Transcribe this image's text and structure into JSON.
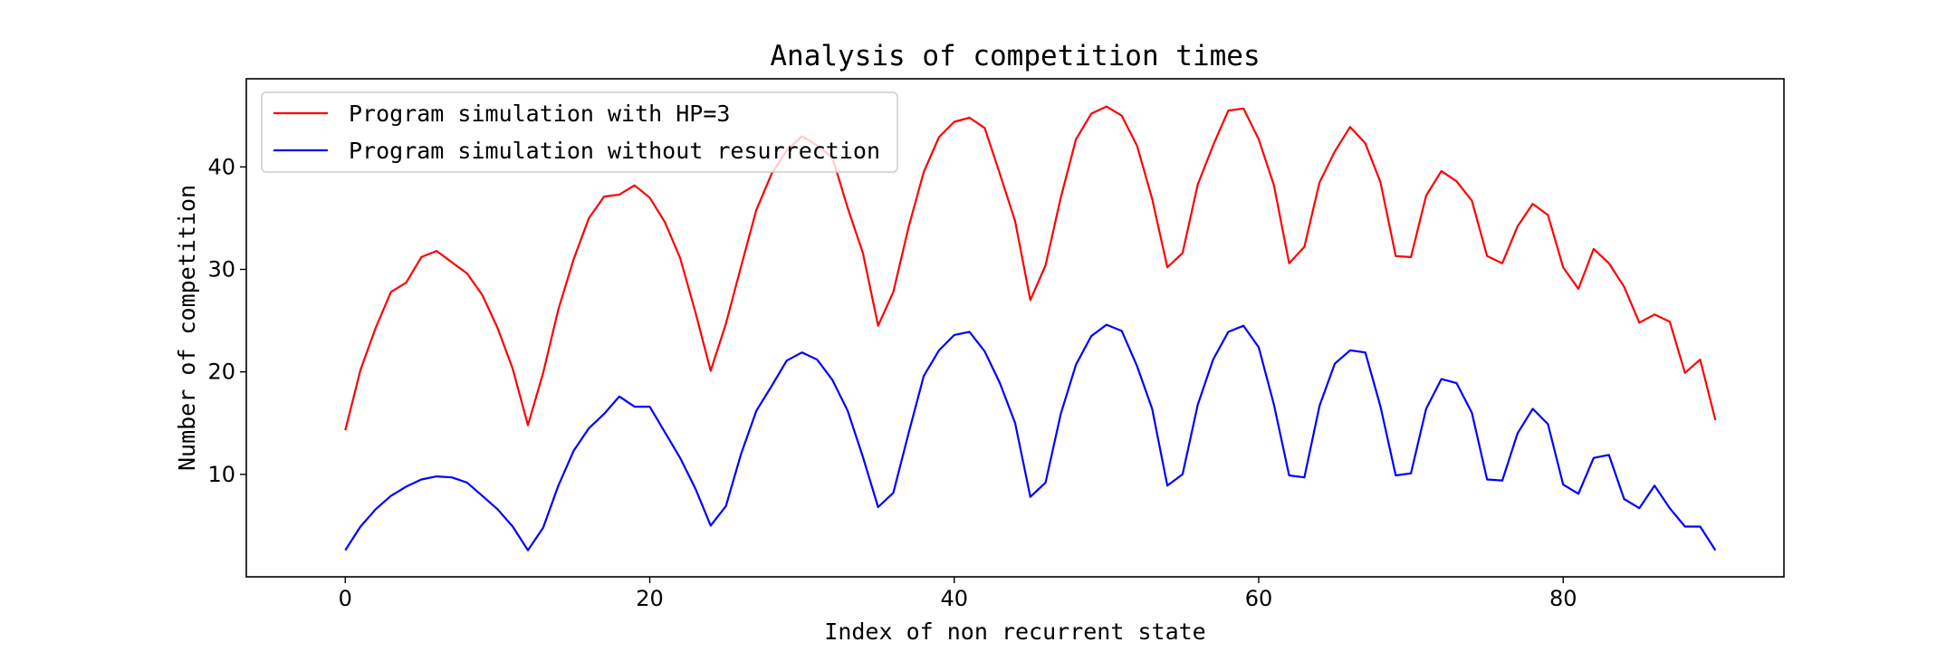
{
  "chart_data": {
    "type": "line",
    "title": "Analysis of competition times",
    "xlabel": "Index of non recurrent state",
    "ylabel": "Number of competition",
    "xlim": [
      -6.5,
      94.5
    ],
    "ylim": [
      0,
      48.6
    ],
    "xticks": [
      0,
      20,
      40,
      60,
      80
    ],
    "yticks": [
      10,
      20,
      30,
      40
    ],
    "grid": false,
    "legend_position": "top-left",
    "series": [
      {
        "name": "Program simulation with HP=3",
        "color": "#ff0000",
        "x": [
          0,
          1,
          2,
          3,
          4,
          5,
          6,
          7,
          8,
          9,
          10,
          11,
          12,
          13,
          14,
          15,
          16,
          17,
          18,
          19,
          20,
          21,
          22,
          23,
          24,
          25,
          26,
          27,
          28,
          29,
          30,
          31,
          32,
          33,
          34,
          35,
          36,
          37,
          38,
          39,
          40,
          41,
          42,
          43,
          44,
          45,
          46,
          47,
          48,
          49,
          50,
          51,
          52,
          53,
          54,
          55,
          56,
          57,
          58,
          59,
          60,
          61,
          62,
          63,
          64,
          65,
          66,
          67,
          68,
          69,
          70,
          71,
          72,
          73,
          74,
          75,
          76,
          77,
          78,
          79,
          80,
          81,
          82,
          83,
          84,
          85,
          86,
          87,
          88,
          89,
          90
        ],
        "values": [
          14.3,
          20.2,
          24.3,
          27.8,
          28.7,
          31.2,
          31.8,
          30.7,
          29.6,
          27.5,
          24.3,
          20.3,
          14.8,
          19.9,
          26.1,
          31.0,
          35.0,
          37.1,
          37.3,
          38.2,
          37.0,
          34.6,
          31.1,
          25.8,
          20.1,
          24.7,
          30.3,
          35.8,
          39.3,
          41.6,
          43.0,
          42.1,
          40.9,
          36.0,
          31.6,
          24.5,
          27.8,
          34.1,
          39.5,
          42.9,
          44.4,
          44.8,
          43.8,
          39.3,
          34.7,
          27.0,
          30.4,
          37.0,
          42.7,
          45.2,
          45.9,
          45.0,
          42.1,
          36.9,
          30.2,
          31.6,
          38.3,
          42.1,
          45.5,
          45.7,
          42.7,
          38.2,
          30.6,
          32.2,
          38.5,
          41.5,
          43.9,
          42.3,
          38.5,
          31.3,
          31.2,
          37.2,
          39.6,
          38.6,
          36.7,
          31.3,
          30.6,
          34.2,
          36.4,
          35.3,
          30.2,
          28.1,
          32.0,
          30.6,
          28.3,
          24.8,
          25.6,
          24.9,
          19.9,
          21.2,
          15.3
        ]
      },
      {
        "name": "Program simulation without resurrection",
        "color": "#0000ff",
        "x": [
          0,
          1,
          2,
          3,
          4,
          5,
          6,
          7,
          8,
          9,
          10,
          11,
          12,
          13,
          14,
          15,
          16,
          17,
          18,
          19,
          20,
          21,
          22,
          23,
          24,
          25,
          26,
          27,
          28,
          29,
          30,
          31,
          32,
          33,
          34,
          35,
          36,
          37,
          38,
          39,
          40,
          41,
          42,
          43,
          44,
          45,
          46,
          47,
          48,
          49,
          50,
          51,
          52,
          53,
          54,
          55,
          56,
          57,
          58,
          59,
          60,
          61,
          62,
          63,
          64,
          65,
          66,
          67,
          68,
          69,
          70,
          71,
          72,
          73,
          74,
          75,
          76,
          77,
          78,
          79,
          80,
          81,
          82,
          83,
          84,
          85,
          86,
          87,
          88,
          89,
          90
        ],
        "values": [
          2.6,
          4.9,
          6.6,
          7.9,
          8.8,
          9.5,
          9.8,
          9.7,
          9.2,
          7.9,
          6.6,
          4.9,
          2.6,
          4.8,
          8.9,
          12.3,
          14.5,
          15.9,
          17.6,
          16.6,
          16.6,
          14.1,
          11.6,
          8.6,
          5.0,
          6.9,
          12.0,
          16.2,
          18.6,
          21.1,
          21.9,
          21.2,
          19.2,
          16.2,
          11.7,
          6.8,
          8.2,
          14.0,
          19.6,
          22.1,
          23.6,
          23.9,
          22.0,
          18.9,
          15.0,
          7.8,
          9.2,
          15.9,
          20.7,
          23.5,
          24.6,
          24.0,
          20.6,
          16.4,
          8.9,
          10.0,
          16.8,
          21.2,
          23.9,
          24.5,
          22.4,
          16.8,
          9.9,
          9.7,
          16.7,
          20.8,
          22.1,
          21.9,
          16.6,
          9.9,
          10.1,
          16.4,
          19.3,
          18.9,
          16.0,
          9.5,
          9.4,
          14.0,
          16.4,
          14.9,
          9.0,
          8.1,
          11.6,
          11.9,
          7.6,
          6.7,
          8.9,
          6.7,
          4.9,
          4.9,
          2.6
        ]
      }
    ]
  }
}
